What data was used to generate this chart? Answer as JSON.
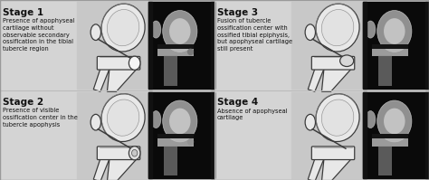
{
  "background_color": "#d4d4d4",
  "label_fontsize": 7.5,
  "desc_fontsize": 4.8,
  "label_fontweight": "bold",
  "text_color": "#111111",
  "divider_color": "#bbbbbb",
  "ill_bg": "#c8c8c8",
  "xray_bg": "#111111",
  "stages": [
    {
      "label": "Stage 1",
      "desc": "Presence of apophyseal\ncartilage without\nobservable secondary\nossification in the tibial\ntubercle region",
      "col": 0,
      "row": 1
    },
    {
      "label": "Stage 2",
      "desc": "Presence of visible\nossification center in the\ntubercle apophysis",
      "col": 0,
      "row": 0
    },
    {
      "label": "Stage 3",
      "desc": "Fusion of tubercle\nossification center with\nossified tibial epiphysis,\nbut apophyseal cartilage\nstill present",
      "col": 1,
      "row": 1
    },
    {
      "label": "Stage 4",
      "desc": "Absence of apophyseal\ncartilage",
      "col": 1,
      "row": 0
    }
  ]
}
